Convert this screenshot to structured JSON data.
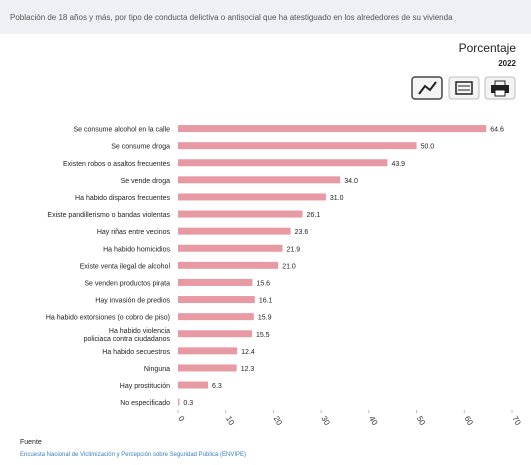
{
  "chart_data": {
    "type": "bar",
    "orientation": "horizontal",
    "title": "Población de 18 años y más, por tipo de conducta delictiva o antisocial que ha atestiguado en los alrededores de su vivienda",
    "unit_label": "Porcentaje",
    "year": "2022",
    "categories": [
      "Se consume alcohol en la calle",
      "Se consume droga",
      "Existen robos o asaltos frecuentes",
      "Se vende droga",
      "Ha habido disparos frecuentes",
      "Existe pandillerismo o bandas violentas",
      "Hay riñas entre vecinos",
      "Ha habido homicidios",
      "Existe venta ilegal de alcohol",
      "Se venden productos pirata",
      "Hay invasión de predios",
      "Ha habido extorsiones (o cobro de piso)",
      "Ha habido violencia policiaca contra ciudadanos",
      "Ha habido secuestros",
      "Ninguna",
      "Hay prostitución",
      "No especificado"
    ],
    "values": [
      64.6,
      50.0,
      43.9,
      34.0,
      31.0,
      26.1,
      23.6,
      21.9,
      21.0,
      15.6,
      16.1,
      15.9,
      15.5,
      12.4,
      12.3,
      6.3,
      0.3
    ],
    "value_labels": [
      "64.6",
      "50.0",
      "43.9",
      "34.0",
      "31.0",
      "26.1",
      "23.6",
      "21.9",
      "21.0",
      "15.6",
      "16.1",
      "15.9",
      "15.5",
      "12.4",
      "12.3",
      "6.3",
      "0.3"
    ],
    "color": "#e89aa4",
    "xlim": [
      0,
      70
    ],
    "xticks": [
      0,
      10,
      20,
      30,
      40,
      50,
      60,
      70
    ],
    "source_label": "Fuente",
    "source": "Encuesta Nacional de Victimización y Percepción sobre Seguridad Pública (ENVIPE)"
  }
}
